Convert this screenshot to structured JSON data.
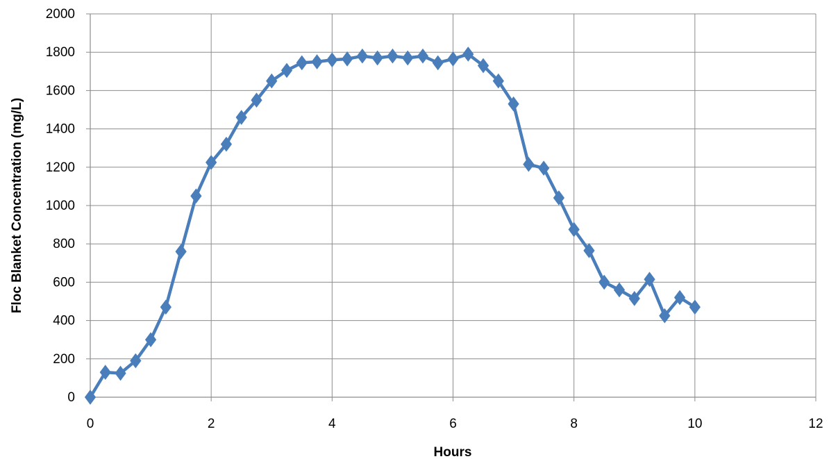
{
  "chart_data": {
    "type": "line",
    "title": "",
    "xlabel": "Hours",
    "ylabel": "Floc Blanket Concentration (mg/L)",
    "xlim": [
      0,
      12
    ],
    "ylim": [
      0,
      2000
    ],
    "xticks": [
      0,
      2,
      4,
      6,
      8,
      10,
      12
    ],
    "yticks": [
      0,
      200,
      400,
      600,
      800,
      1000,
      1200,
      1400,
      1600,
      1800,
      2000
    ],
    "grid": true,
    "legend": "none",
    "colors": {
      "series": "#4A7EBB",
      "grid": "#8C8C8C",
      "background": "#FFFFFF"
    },
    "series": [
      {
        "marker": "diamond",
        "x": [
          0,
          0.25,
          0.5,
          0.75,
          1,
          1.25,
          1.5,
          1.75,
          2,
          2.25,
          2.5,
          2.75,
          3,
          3.25,
          3.5,
          3.75,
          4,
          4.25,
          4.5,
          4.75,
          5,
          5.25,
          5.5,
          5.75,
          6,
          6.25,
          6.5,
          6.75,
          7,
          7.25,
          7.5,
          7.75,
          8,
          8.25,
          8.5,
          8.75,
          9,
          9.25,
          9.5,
          9.75,
          10
        ],
        "y": [
          0,
          130,
          125,
          190,
          300,
          470,
          760,
          1050,
          1225,
          1320,
          1460,
          1550,
          1650,
          1705,
          1745,
          1750,
          1760,
          1765,
          1780,
          1770,
          1780,
          1770,
          1780,
          1745,
          1765,
          1790,
          1730,
          1650,
          1530,
          1215,
          1195,
          1040,
          875,
          765,
          600,
          560,
          515,
          615,
          425,
          520,
          470
        ]
      }
    ]
  }
}
